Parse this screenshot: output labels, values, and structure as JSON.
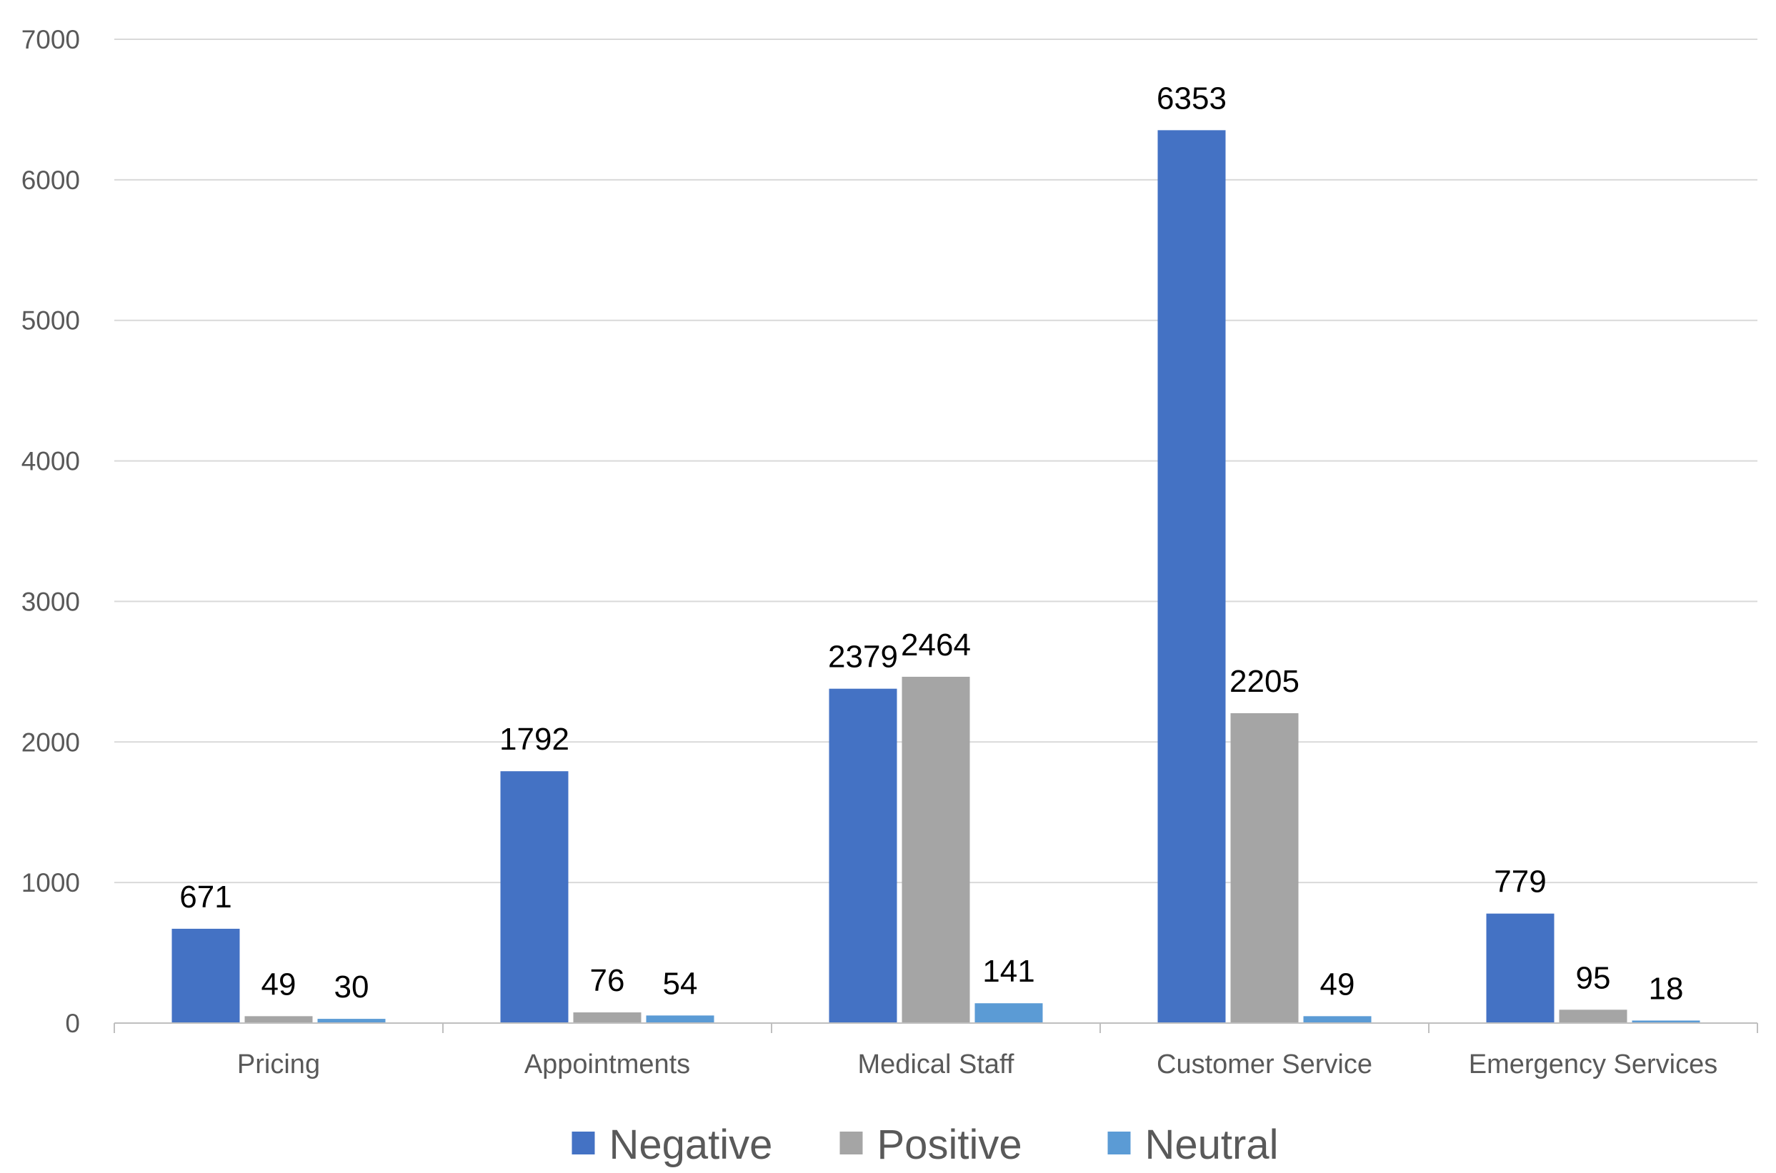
{
  "chart_data": {
    "type": "bar",
    "title": "",
    "xlabel": "",
    "ylabel": "",
    "categories": [
      "Pricing",
      "Appointments",
      "Medical Staff",
      "Customer Service",
      "Emergency Services"
    ],
    "series": [
      {
        "name": "Negative",
        "color": "#4472C4",
        "values": [
          671,
          1792,
          2379,
          6353,
          779
        ]
      },
      {
        "name": "Positive",
        "color": "#A5A5A5",
        "values": [
          49,
          76,
          2464,
          2205,
          95
        ]
      },
      {
        "name": "Neutral",
        "color": "#5B9BD5",
        "values": [
          30,
          54,
          141,
          49,
          18
        ]
      }
    ],
    "ylim": [
      0,
      7000
    ],
    "yticks": [
      0,
      1000,
      2000,
      3000,
      4000,
      5000,
      6000,
      7000
    ],
    "grid": true,
    "legend_position": "bottom"
  }
}
